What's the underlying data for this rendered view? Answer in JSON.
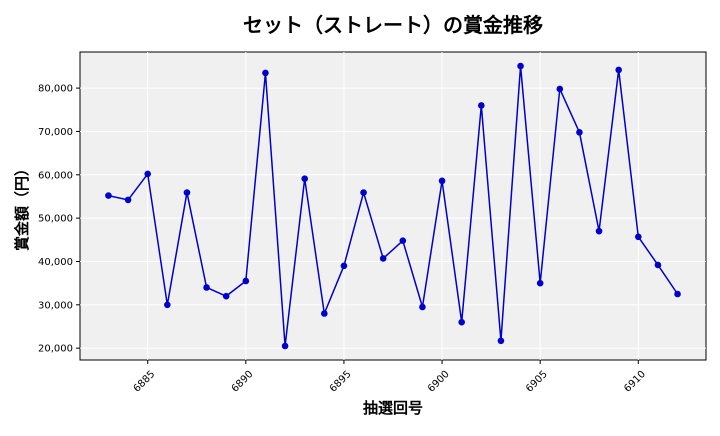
{
  "chart_data": {
    "type": "line",
    "title": "セット（ストレート）の賞金推移",
    "xlabel": "抽選回号",
    "ylabel": "賞金額（円）",
    "x": [
      6883,
      6884,
      6885,
      6886,
      6887,
      6888,
      6889,
      6890,
      6891,
      6892,
      6893,
      6894,
      6895,
      6896,
      6897,
      6898,
      6899,
      6900,
      6901,
      6902,
      6903,
      6904,
      6905,
      6906,
      6907,
      6908,
      6909,
      6910,
      6911,
      6912
    ],
    "series": [
      {
        "values": [
          55200,
          54200,
          60200,
          30000,
          55900,
          34000,
          32000,
          35500,
          83500,
          20500,
          59100,
          28000,
          39000,
          55900,
          40700,
          44800,
          29500,
          58600,
          26000,
          76000,
          21700,
          85100,
          35000,
          79800,
          69800,
          47000,
          84200,
          45700,
          39200,
          32500
        ],
        "color": "#0000cc"
      }
    ],
    "xticks": [
      6885,
      6890,
      6895,
      6900,
      6905,
      6910
    ],
    "xtick_labels": [
      "6885",
      "6890",
      "6895",
      "6900",
      "6905",
      "6910"
    ],
    "yticks": [
      20000,
      30000,
      40000,
      50000,
      60000,
      70000,
      80000
    ],
    "ytick_labels": [
      "20,000",
      "30,000",
      "40,000",
      "50,000",
      "60,000",
      "70,000",
      "80,000"
    ],
    "xlim": [
      6881.55,
      6913.45
    ],
    "ylim": [
      17270,
      88330
    ],
    "grid": true,
    "colors": {
      "plot_background": "#f0f0f0",
      "grid": "#ffffff",
      "line": "#0000cc"
    }
  }
}
